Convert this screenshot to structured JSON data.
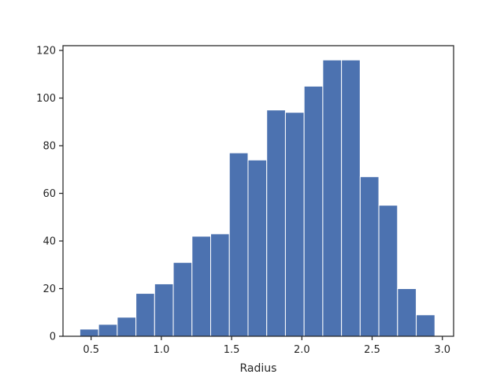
{
  "chart_data": {
    "type": "bar",
    "subtype": "histogram",
    "title": "",
    "xlabel": "Radius",
    "ylabel": "",
    "xlim": [
      0.3,
      3.08
    ],
    "ylim": [
      0,
      122
    ],
    "grid": false,
    "bar_color": "#4c72b0",
    "bin_edges": [
      0.42,
      0.553,
      0.686,
      0.819,
      0.952,
      1.085,
      1.218,
      1.351,
      1.484,
      1.617,
      1.75,
      1.883,
      2.016,
      2.149,
      2.282,
      2.415,
      2.548,
      2.681,
      2.814,
      2.947
    ],
    "values": [
      3,
      5,
      8,
      18,
      22,
      31,
      42,
      43,
      77,
      74,
      95,
      94,
      105,
      116,
      116,
      67,
      55,
      20,
      9
    ],
    "x_ticks": [
      0.5,
      1.0,
      1.5,
      2.0,
      2.5,
      3.0
    ],
    "x_tick_labels": [
      "0.5",
      "1.0",
      "1.5",
      "2.0",
      "2.5",
      "3.0"
    ],
    "y_ticks": [
      0,
      20,
      40,
      60,
      80,
      100,
      120
    ],
    "y_tick_labels": [
      "0",
      "20",
      "40",
      "60",
      "80",
      "100",
      "120"
    ]
  }
}
